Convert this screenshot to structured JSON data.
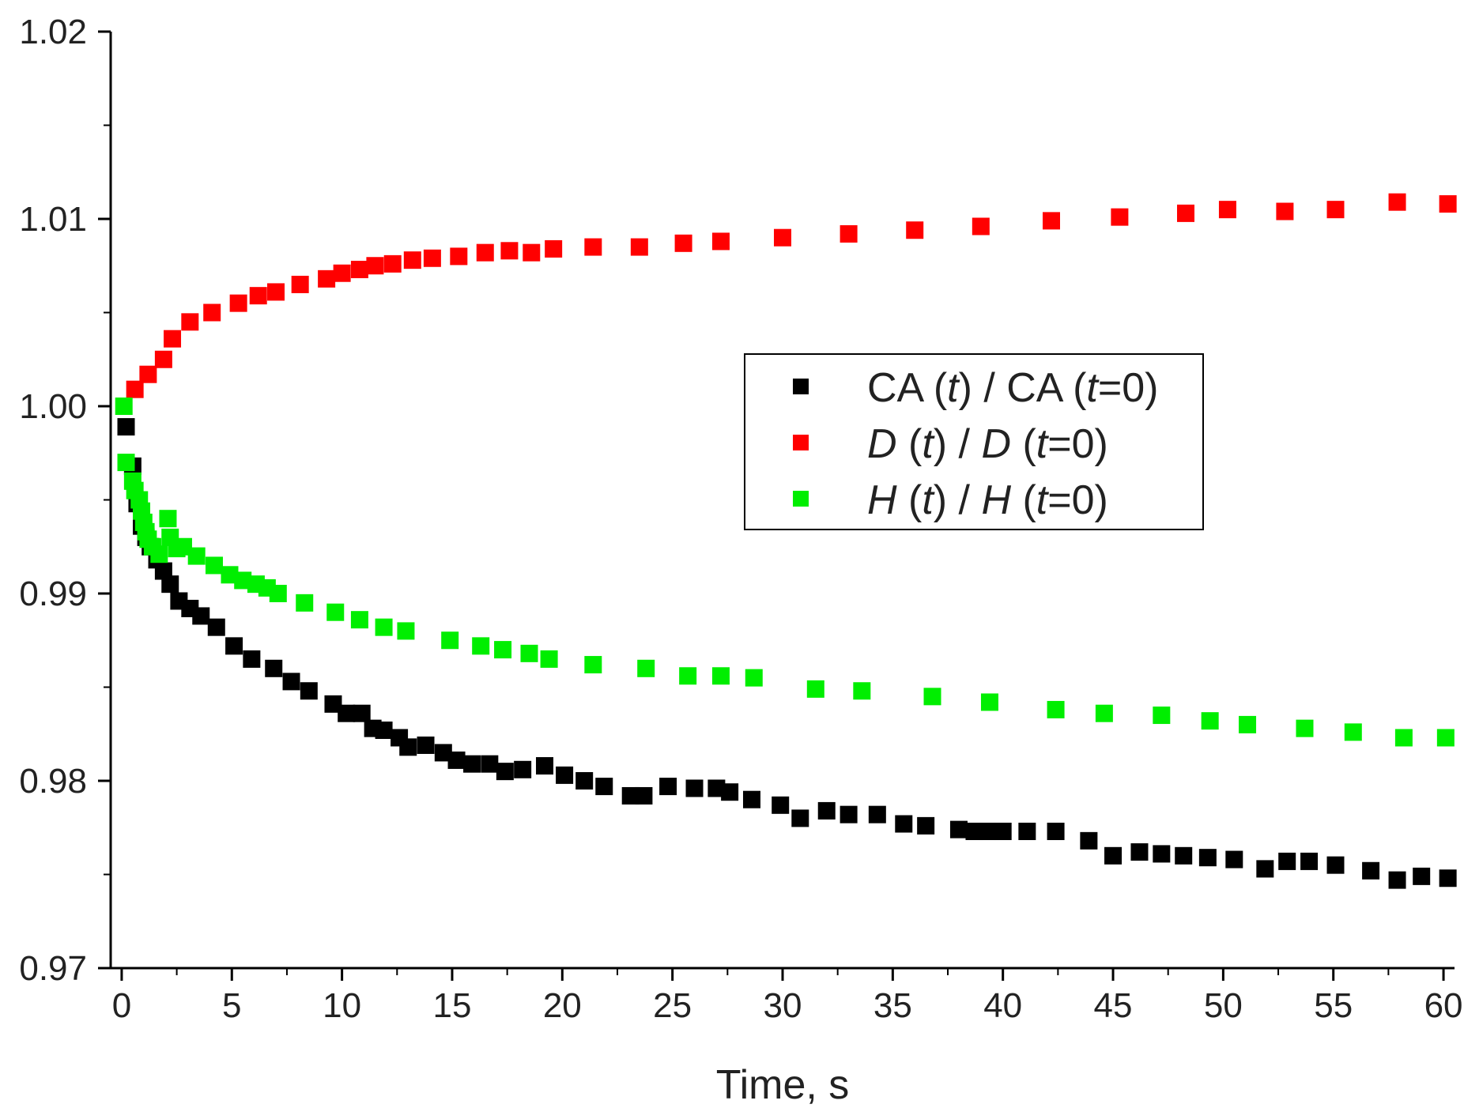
{
  "chart_data": {
    "type": "scatter",
    "title": "",
    "xlabel": "Time, s",
    "ylabel": "",
    "xlim": [
      -0.5,
      60.5
    ],
    "ylim": [
      0.97,
      1.02
    ],
    "x_ticks": [
      0,
      5,
      10,
      15,
      20,
      25,
      30,
      35,
      40,
      45,
      50,
      55,
      60
    ],
    "y_ticks": [
      0.97,
      0.98,
      0.99,
      1.0,
      1.01,
      1.02
    ],
    "x_tick_labels": [
      "0",
      "5",
      "10",
      "15",
      "20",
      "25",
      "30",
      "35",
      "40",
      "45",
      "50",
      "55",
      "60"
    ],
    "y_tick_labels": [
      "0.97",
      "0.98",
      "0.99",
      "1.00",
      "1.01",
      "1.02"
    ],
    "grid": false,
    "legend_position": "center-right",
    "series": [
      {
        "key": "ca",
        "name": "CA (t) / CA (t=0)",
        "legend_parts": [
          {
            "text": "CA (",
            "italic": false
          },
          {
            "text": "t",
            "italic": true
          },
          {
            "text": ") / CA (",
            "italic": false
          },
          {
            "text": "t",
            "italic": true
          },
          {
            "text": "=0)",
            "italic": false
          }
        ],
        "color": "#000000",
        "points": [
          [
            0.2,
            0.9989
          ],
          [
            0.5,
            0.9968
          ],
          [
            0.7,
            0.9948
          ],
          [
            0.9,
            0.9936
          ],
          [
            1.1,
            0.993
          ],
          [
            1.3,
            0.9925
          ],
          [
            1.6,
            0.9918
          ],
          [
            1.9,
            0.9912
          ],
          [
            2.2,
            0.9905
          ],
          [
            2.6,
            0.9896
          ],
          [
            3.1,
            0.9892
          ],
          [
            3.6,
            0.9888
          ],
          [
            4.3,
            0.9882
          ],
          [
            5.1,
            0.9872
          ],
          [
            5.9,
            0.9865
          ],
          [
            6.9,
            0.986
          ],
          [
            7.7,
            0.9853
          ],
          [
            8.5,
            0.9848
          ],
          [
            9.6,
            0.9841
          ],
          [
            10.2,
            0.9836
          ],
          [
            10.9,
            0.9836
          ],
          [
            11.4,
            0.9828
          ],
          [
            11.9,
            0.9827
          ],
          [
            12.6,
            0.9823
          ],
          [
            13.0,
            0.9818
          ],
          [
            13.8,
            0.9819
          ],
          [
            14.6,
            0.9815
          ],
          [
            15.2,
            0.9811
          ],
          [
            15.9,
            0.9809
          ],
          [
            16.7,
            0.9809
          ],
          [
            17.4,
            0.9805
          ],
          [
            18.2,
            0.9806
          ],
          [
            19.2,
            0.9808
          ],
          [
            20.1,
            0.9803
          ],
          [
            21.0,
            0.98
          ],
          [
            21.9,
            0.9797
          ],
          [
            23.1,
            0.9792
          ],
          [
            23.7,
            0.9792
          ],
          [
            24.8,
            0.9797
          ],
          [
            26.0,
            0.9796
          ],
          [
            27.0,
            0.9796
          ],
          [
            27.6,
            0.9794
          ],
          [
            28.6,
            0.979
          ],
          [
            29.9,
            0.9787
          ],
          [
            30.8,
            0.978
          ],
          [
            32.0,
            0.9784
          ],
          [
            33.0,
            0.9782
          ],
          [
            34.3,
            0.9782
          ],
          [
            35.5,
            0.9777
          ],
          [
            36.5,
            0.9776
          ],
          [
            38.0,
            0.9774
          ],
          [
            38.7,
            0.9773
          ],
          [
            39.3,
            0.9773
          ],
          [
            40.0,
            0.9773
          ],
          [
            41.1,
            0.9773
          ],
          [
            42.4,
            0.9773
          ],
          [
            43.9,
            0.9768
          ],
          [
            45.0,
            0.976
          ],
          [
            46.2,
            0.9762
          ],
          [
            47.2,
            0.9761
          ],
          [
            48.2,
            0.976
          ],
          [
            49.3,
            0.9759
          ],
          [
            50.5,
            0.9758
          ],
          [
            51.9,
            0.9753
          ],
          [
            52.9,
            0.9757
          ],
          [
            53.9,
            0.9757
          ],
          [
            55.1,
            0.9755
          ],
          [
            56.7,
            0.9752
          ],
          [
            57.9,
            0.9747
          ],
          [
            59.0,
            0.9749
          ],
          [
            60.2,
            0.9748
          ]
        ]
      },
      {
        "key": "d",
        "name": "D (t) / D (t=0)",
        "legend_parts": [
          {
            "text": "D",
            "italic": true
          },
          {
            "text": " (",
            "italic": false
          },
          {
            "text": "t",
            "italic": true
          },
          {
            "text": ") / ",
            "italic": false
          },
          {
            "text": "D",
            "italic": true
          },
          {
            "text": " (",
            "italic": false
          },
          {
            "text": "t",
            "italic": true
          },
          {
            "text": "=0)",
            "italic": false
          }
        ],
        "color": "#ff0000",
        "points": [
          [
            0.6,
            1.0009
          ],
          [
            1.2,
            1.0017
          ],
          [
            1.9,
            1.0025
          ],
          [
            2.3,
            1.0036
          ],
          [
            3.1,
            1.0045
          ],
          [
            4.1,
            1.005
          ],
          [
            5.3,
            1.0055
          ],
          [
            6.2,
            1.0059
          ],
          [
            7.0,
            1.0061
          ],
          [
            8.1,
            1.0065
          ],
          [
            9.3,
            1.0068
          ],
          [
            10.0,
            1.0071
          ],
          [
            10.8,
            1.0073
          ],
          [
            11.5,
            1.0075
          ],
          [
            12.3,
            1.0076
          ],
          [
            13.2,
            1.0078
          ],
          [
            14.1,
            1.0079
          ],
          [
            15.3,
            1.008
          ],
          [
            16.5,
            1.0082
          ],
          [
            17.6,
            1.0083
          ],
          [
            18.6,
            1.0082
          ],
          [
            19.6,
            1.0084
          ],
          [
            21.4,
            1.0085
          ],
          [
            23.5,
            1.0085
          ],
          [
            25.5,
            1.0087
          ],
          [
            27.2,
            1.0088
          ],
          [
            30.0,
            1.009
          ],
          [
            33.0,
            1.0092
          ],
          [
            36.0,
            1.0094
          ],
          [
            39.0,
            1.0096
          ],
          [
            42.2,
            1.0099
          ],
          [
            45.3,
            1.0101
          ],
          [
            48.3,
            1.0103
          ],
          [
            50.2,
            1.0105
          ],
          [
            52.8,
            1.0104
          ],
          [
            55.1,
            1.0105
          ],
          [
            57.9,
            1.0109
          ],
          [
            60.2,
            1.0108
          ]
        ]
      },
      {
        "key": "h",
        "name": "H (t) / H (t=0)",
        "legend_parts": [
          {
            "text": "H",
            "italic": true
          },
          {
            "text": " (",
            "italic": false
          },
          {
            "text": "t",
            "italic": true
          },
          {
            "text": ") / ",
            "italic": false
          },
          {
            "text": "H",
            "italic": true
          },
          {
            "text": " (",
            "italic": false
          },
          {
            "text": "t",
            "italic": true
          },
          {
            "text": "=0)",
            "italic": false
          }
        ],
        "color": "#00ee00",
        "points": [
          [
            0.1,
            1.0
          ],
          [
            0.2,
            0.997
          ],
          [
            0.5,
            0.996
          ],
          [
            0.6,
            0.9955
          ],
          [
            0.8,
            0.995
          ],
          [
            0.9,
            0.9944
          ],
          [
            1.0,
            0.9938
          ],
          [
            1.1,
            0.9933
          ],
          [
            1.2,
            0.9929
          ],
          [
            1.4,
            0.9925
          ],
          [
            1.7,
            0.9921
          ],
          [
            2.1,
            0.994
          ],
          [
            2.2,
            0.993
          ],
          [
            2.5,
            0.9924
          ],
          [
            2.8,
            0.9925
          ],
          [
            3.4,
            0.992
          ],
          [
            4.2,
            0.9915
          ],
          [
            4.9,
            0.991
          ],
          [
            5.5,
            0.9907
          ],
          [
            6.1,
            0.9905
          ],
          [
            6.6,
            0.9903
          ],
          [
            7.1,
            0.99
          ],
          [
            8.3,
            0.9895
          ],
          [
            9.7,
            0.989
          ],
          [
            10.8,
            0.9886
          ],
          [
            11.9,
            0.9882
          ],
          [
            12.9,
            0.988
          ],
          [
            14.9,
            0.9875
          ],
          [
            16.3,
            0.9872
          ],
          [
            17.3,
            0.987
          ],
          [
            18.5,
            0.9868
          ],
          [
            19.4,
            0.9865
          ],
          [
            21.4,
            0.9862
          ],
          [
            23.8,
            0.986
          ],
          [
            25.7,
            0.9856
          ],
          [
            27.2,
            0.9856
          ],
          [
            28.7,
            0.9855
          ],
          [
            31.5,
            0.9849
          ],
          [
            33.6,
            0.9848
          ],
          [
            36.8,
            0.9845
          ],
          [
            39.4,
            0.9842
          ],
          [
            42.4,
            0.9838
          ],
          [
            44.6,
            0.9836
          ],
          [
            47.2,
            0.9835
          ],
          [
            49.4,
            0.9832
          ],
          [
            51.1,
            0.983
          ],
          [
            53.7,
            0.9828
          ],
          [
            55.9,
            0.9826
          ],
          [
            58.2,
            0.9823
          ],
          [
            60.1,
            0.9823
          ]
        ]
      }
    ]
  }
}
